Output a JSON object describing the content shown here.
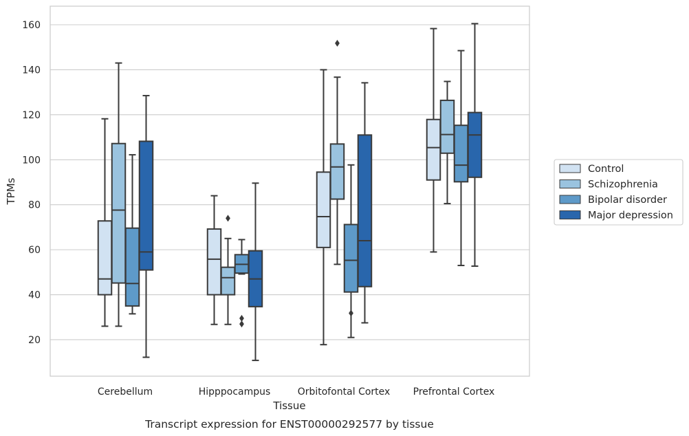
{
  "chart_data": {
    "type": "box",
    "xlabel": "Tissue",
    "ylabel": "TPMs",
    "caption": "Transcript expression for ENST00000292577 by tissue",
    "ylim": [
      3,
      168
    ],
    "yticks": [
      20,
      40,
      60,
      80,
      100,
      120,
      140,
      160
    ],
    "grid": true,
    "legend_position": "right",
    "categories": [
      "Cerebellum",
      "Hipppocampus",
      "Orbitofontal Cortex",
      "Prefrontal Cortex"
    ],
    "series": [
      {
        "name": "Control",
        "color": "#d1e2f2",
        "boxes": [
          {
            "whisker_low": 26,
            "q1": 40,
            "median": 47,
            "q3": 72.8,
            "whisker_high": 118.2,
            "outliers": []
          },
          {
            "whisker_low": 26.8,
            "q1": 40,
            "median": 55.8,
            "q3": 69.2,
            "whisker_high": 84,
            "outliers": []
          },
          {
            "whisker_low": 17.8,
            "q1": 61,
            "median": 74.7,
            "q3": 94.5,
            "whisker_high": 140,
            "outliers": []
          },
          {
            "whisker_low": 59,
            "q1": 91,
            "median": 105.4,
            "q3": 117.9,
            "whisker_high": 158.3,
            "outliers": []
          }
        ]
      },
      {
        "name": "Schizophrenia",
        "color": "#9ac3df",
        "boxes": [
          {
            "whisker_low": 26,
            "q1": 45.2,
            "median": 77.6,
            "q3": 107.2,
            "whisker_high": 143,
            "outliers": []
          },
          {
            "whisker_low": 26.8,
            "q1": 40,
            "median": 47.6,
            "q3": 52.2,
            "whisker_high": 65,
            "outliers": [
              74
            ]
          },
          {
            "whisker_low": 53.5,
            "q1": 82.5,
            "median": 96.8,
            "q3": 107,
            "whisker_high": 136.7,
            "outliers": [
              151.8
            ]
          },
          {
            "whisker_low": 80.5,
            "q1": 102.9,
            "median": 111.2,
            "q3": 126.4,
            "whisker_high": 134.8,
            "outliers": []
          }
        ]
      },
      {
        "name": "Bipolar disorder",
        "color": "#5e9ac9",
        "boxes": [
          {
            "whisker_low": 31.5,
            "q1": 35,
            "median": 45,
            "q3": 69.6,
            "whisker_high": 102.2,
            "outliers": []
          },
          {
            "whisker_low": 49.2,
            "q1": 49.6,
            "median": 53.5,
            "q3": 57.8,
            "whisker_high": 64.5,
            "outliers": [
              29.5,
              27
            ]
          },
          {
            "whisker_low": 21,
            "q1": 41.2,
            "median": 55.3,
            "q3": 71.2,
            "whisker_high": 97.7,
            "outliers": [
              31.8
            ]
          },
          {
            "whisker_low": 53,
            "q1": 90.2,
            "median": 97.6,
            "q3": 115.3,
            "whisker_high": 148.5,
            "outliers": []
          }
        ]
      },
      {
        "name": "Major depression",
        "color": "#2966ac",
        "boxes": [
          {
            "whisker_low": 12.2,
            "q1": 51,
            "median": 59,
            "q3": 108.2,
            "whisker_high": 128.5,
            "outliers": []
          },
          {
            "whisker_low": 10.8,
            "q1": 34.7,
            "median": 47,
            "q3": 59.5,
            "whisker_high": 89.6,
            "outliers": []
          },
          {
            "whisker_low": 27.5,
            "q1": 43.6,
            "median": 64,
            "q3": 111,
            "whisker_high": 134.2,
            "outliers": []
          },
          {
            "whisker_low": 52.7,
            "q1": 92.2,
            "median": 111,
            "q3": 121,
            "whisker_high": 160.5,
            "outliers": []
          }
        ]
      }
    ]
  }
}
